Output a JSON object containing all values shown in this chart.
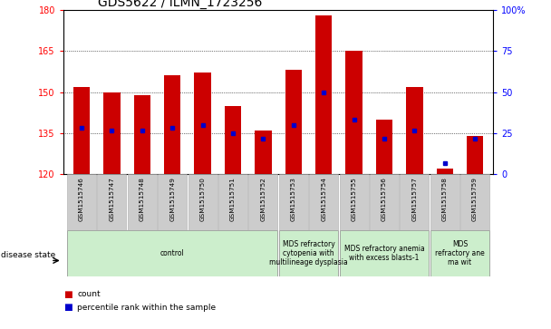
{
  "title": "GDS5622 / ILMN_1723256",
  "samples": [
    "GSM1515746",
    "GSM1515747",
    "GSM1515748",
    "GSM1515749",
    "GSM1515750",
    "GSM1515751",
    "GSM1515752",
    "GSM1515753",
    "GSM1515754",
    "GSM1515755",
    "GSM1515756",
    "GSM1515757",
    "GSM1515758",
    "GSM1515759"
  ],
  "bar_values": [
    152,
    150,
    149,
    156,
    157,
    145,
    136,
    158,
    178,
    165,
    140,
    152,
    122,
    134
  ],
  "percentile_values": [
    137,
    136,
    136,
    137,
    138,
    135,
    133,
    138,
    150,
    140,
    133,
    136,
    124,
    133
  ],
  "y_min": 120,
  "y_max": 180,
  "y_ticks": [
    120,
    135,
    150,
    165,
    180
  ],
  "y2_ticks": [
    0,
    25,
    50,
    75,
    100
  ],
  "y2_tick_labels": [
    "0",
    "25",
    "50",
    "75",
    "100%"
  ],
  "bar_color": "#cc0000",
  "percentile_color": "#0000cc",
  "groups": [
    {
      "label": "control",
      "start": 0,
      "end": 7,
      "color": "#cceecc"
    },
    {
      "label": "MDS refractory\ncytopenia with\nmultilineage dysplasia",
      "start": 7,
      "end": 9,
      "color": "#cceecc"
    },
    {
      "label": "MDS refractory anemia\nwith excess blasts-1",
      "start": 9,
      "end": 12,
      "color": "#cceecc"
    },
    {
      "label": "MDS\nrefractory ane\nma wit",
      "start": 12,
      "end": 14,
      "color": "#cceecc"
    }
  ],
  "title_fontsize": 10,
  "tick_fontsize": 7,
  "sample_fontsize": 5.2,
  "group_fontsize": 5.5
}
